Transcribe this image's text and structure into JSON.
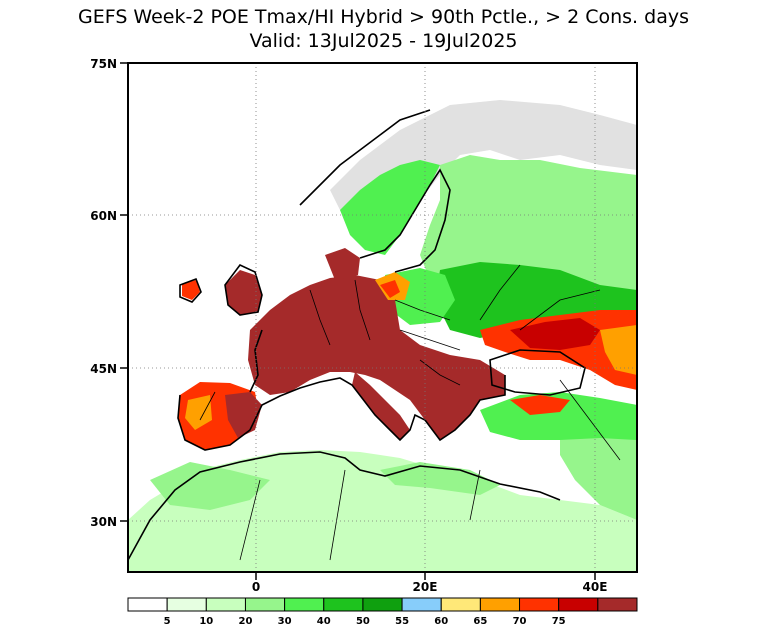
{
  "title": {
    "line1": "GEFS Week-2 POE Tmax/HI Hybrid > 90th Pctle., > 2 Cons. days",
    "line2": "Valid: 13Jul2025 - 19Jul2025"
  },
  "axes": {
    "y_ticks": [
      {
        "value": 75,
        "label": "75N"
      },
      {
        "value": 60,
        "label": "60N"
      },
      {
        "value": 45,
        "label": "45N"
      },
      {
        "value": 30,
        "label": "30N"
      }
    ],
    "x_ticks": [
      {
        "value": 0,
        "label": "0"
      },
      {
        "value": 20,
        "label": "20E"
      },
      {
        "value": 40,
        "label": "40E"
      }
    ],
    "lon_range": [
      -15,
      45
    ],
    "lat_range": [
      25,
      75
    ]
  },
  "colorbar": {
    "colors": [
      "#ffffff",
      "#e6ffe1",
      "#c8ffbe",
      "#96f58c",
      "#50f050",
      "#1ec31e",
      "#0fa00f",
      "#87cdfa",
      "#ffe878",
      "#ffa000",
      "#ff3200",
      "#c80000",
      "#a52a2a"
    ],
    "labels": [
      "5",
      "10",
      "20",
      "30",
      "40",
      "50",
      "55",
      "60",
      "65",
      "70",
      "75"
    ]
  },
  "legend_colors": {
    "land_missing": "#e1e1e1",
    "green_light": "#c8ffbe",
    "green_mid": "#50f050",
    "green_dark": "#1ec31e",
    "heat_dark": "#a52a2a",
    "heat_red": "#ff3200",
    "heat_orange": "#ffa000"
  }
}
